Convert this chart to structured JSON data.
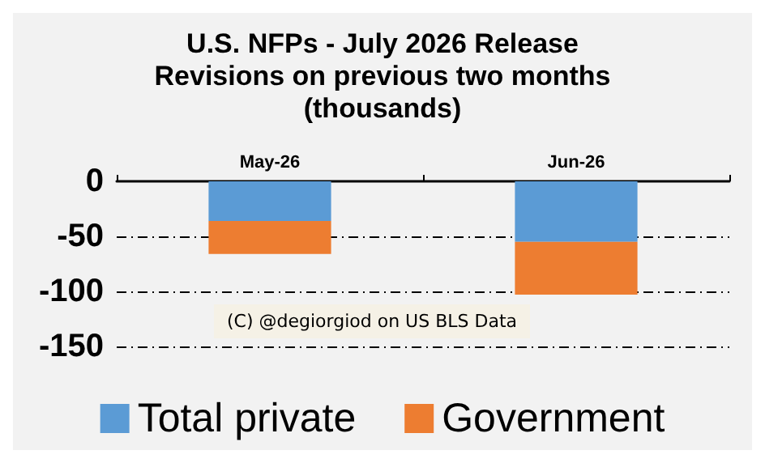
{
  "chart_data": {
    "type": "bar",
    "stacked": true,
    "title": "U.S. NFPs - July 2026 Release\nRevisions on previous two months\n(thousands)",
    "categories": [
      "May-26",
      "Jun-26"
    ],
    "series": [
      {
        "name": "Total private",
        "color": "#5b9bd5",
        "values": [
          -36,
          -55
        ]
      },
      {
        "name": "Government",
        "color": "#ed7d31",
        "values": [
          -30,
          -48
        ]
      }
    ],
    "ylim": [
      -150,
      0
    ],
    "yticks": [
      -150,
      -100,
      -50,
      0
    ],
    "grid": "y",
    "legend": "bottom",
    "annotations": [
      "(C) @degiorgiod on US BLS Data"
    ]
  }
}
